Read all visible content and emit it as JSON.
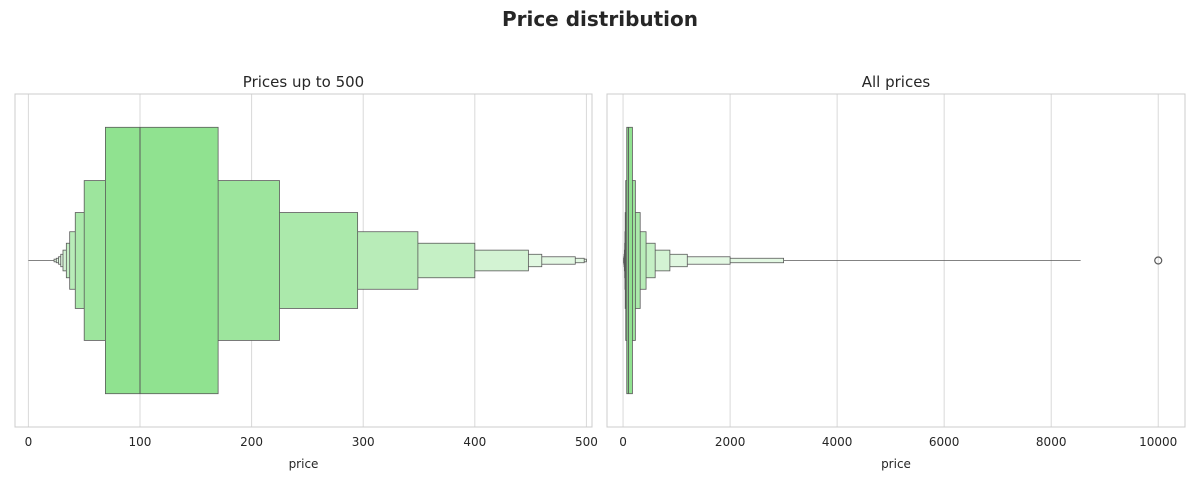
{
  "chart_data": [
    {
      "type": "boxen",
      "title": "Prices up to 500",
      "xlabel": "price",
      "ylabel": "",
      "xlim": [
        -12,
        505
      ],
      "xticks": [
        0,
        100,
        200,
        300,
        400,
        500
      ],
      "grid": true,
      "median": 100,
      "color": "#90e290",
      "levels": [
        [
          69,
          170
        ],
        [
          50,
          225
        ],
        [
          42,
          295
        ],
        [
          37,
          349
        ],
        [
          34,
          400
        ],
        [
          31,
          448
        ],
        [
          29,
          460
        ],
        [
          27,
          490
        ],
        [
          25,
          498
        ],
        [
          23,
          500
        ]
      ],
      "whisker": [
        0,
        23
      ],
      "outliers": []
    },
    {
      "type": "boxen",
      "title": "All prices",
      "xlabel": "price",
      "ylabel": "",
      "xlim": [
        -300,
        10500
      ],
      "xticks": [
        0,
        2000,
        4000,
        6000,
        8000,
        10000
      ],
      "grid": true,
      "median": 100,
      "color": "#90e290",
      "levels": [
        [
          69,
          175
        ],
        [
          50,
          230
        ],
        [
          40,
          320
        ],
        [
          35,
          430
        ],
        [
          30,
          600
        ],
        [
          25,
          875
        ],
        [
          20,
          1200
        ],
        [
          15,
          2000
        ],
        [
          10,
          3000
        ]
      ],
      "whisker": [
        10,
        8550
      ],
      "outliers": [
        10000
      ]
    }
  ],
  "suptitle": "Price distribution"
}
